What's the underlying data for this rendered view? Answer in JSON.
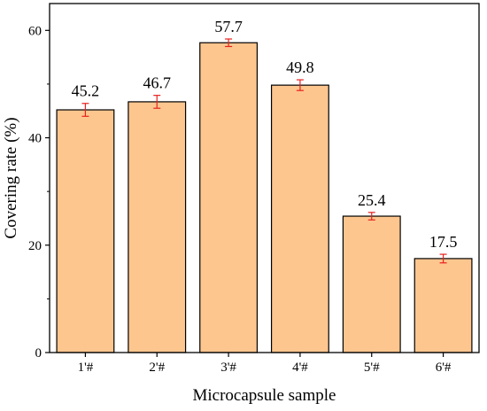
{
  "chart_data": {
    "type": "bar",
    "categories": [
      "1'#",
      "2'#",
      "3'#",
      "4'#",
      "5'#",
      "6'#"
    ],
    "values": [
      45.2,
      46.7,
      57.7,
      49.8,
      25.4,
      17.5
    ],
    "errors": [
      1.2,
      1.2,
      0.7,
      1.0,
      0.7,
      0.8
    ],
    "data_labels": [
      "45.2",
      "46.7",
      "57.7",
      "49.8",
      "25.4",
      "17.5"
    ],
    "xlabel": "Microcapsule sample",
    "ylabel": "Covering rate (%)",
    "ylim": [
      0,
      65
    ],
    "yticks": [
      0,
      20,
      40,
      60
    ],
    "ytick_labels": [
      "0",
      "20",
      "40",
      "60"
    ],
    "grid": false,
    "colors": {
      "bar_fill": "#fdc68f",
      "bar_stroke": "#000000",
      "error_bar": "#e8211f",
      "axis": "#000000"
    }
  }
}
